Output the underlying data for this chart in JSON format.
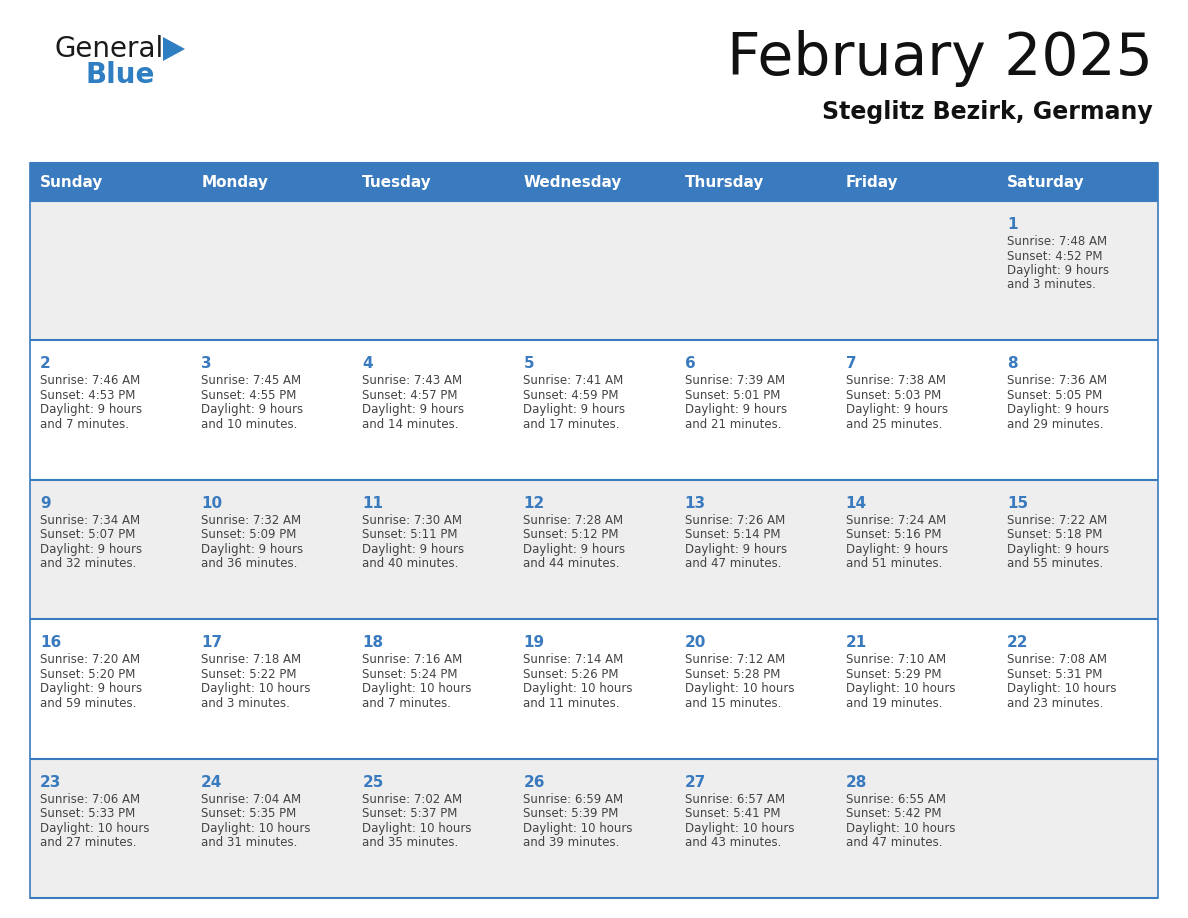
{
  "title": "February 2025",
  "subtitle": "Steglitz Bezirk, Germany",
  "days_of_week": [
    "Sunday",
    "Monday",
    "Tuesday",
    "Wednesday",
    "Thursday",
    "Friday",
    "Saturday"
  ],
  "header_bg": "#3a7abf",
  "header_text": "#ffffff",
  "row_bg": [
    "#eeeeee",
    "#ffffff",
    "#eeeeee",
    "#ffffff",
    "#eeeeee"
  ],
  "separator_color": "#3a7abf",
  "day_number_color": "#3a7abf",
  "text_color": "#444444",
  "calendar_data": [
    [
      null,
      null,
      null,
      null,
      null,
      null,
      {
        "day": 1,
        "sunrise": "7:48 AM",
        "sunset": "4:52 PM",
        "daylight_h": "9 hours",
        "daylight_m": "3 minutes"
      }
    ],
    [
      {
        "day": 2,
        "sunrise": "7:46 AM",
        "sunset": "4:53 PM",
        "daylight_h": "9 hours",
        "daylight_m": "7 minutes"
      },
      {
        "day": 3,
        "sunrise": "7:45 AM",
        "sunset": "4:55 PM",
        "daylight_h": "9 hours",
        "daylight_m": "10 minutes"
      },
      {
        "day": 4,
        "sunrise": "7:43 AM",
        "sunset": "4:57 PM",
        "daylight_h": "9 hours",
        "daylight_m": "14 minutes"
      },
      {
        "day": 5,
        "sunrise": "7:41 AM",
        "sunset": "4:59 PM",
        "daylight_h": "9 hours",
        "daylight_m": "17 minutes"
      },
      {
        "day": 6,
        "sunrise": "7:39 AM",
        "sunset": "5:01 PM",
        "daylight_h": "9 hours",
        "daylight_m": "21 minutes"
      },
      {
        "day": 7,
        "sunrise": "7:38 AM",
        "sunset": "5:03 PM",
        "daylight_h": "9 hours",
        "daylight_m": "25 minutes"
      },
      {
        "day": 8,
        "sunrise": "7:36 AM",
        "sunset": "5:05 PM",
        "daylight_h": "9 hours",
        "daylight_m": "29 minutes"
      }
    ],
    [
      {
        "day": 9,
        "sunrise": "7:34 AM",
        "sunset": "5:07 PM",
        "daylight_h": "9 hours",
        "daylight_m": "32 minutes"
      },
      {
        "day": 10,
        "sunrise": "7:32 AM",
        "sunset": "5:09 PM",
        "daylight_h": "9 hours",
        "daylight_m": "36 minutes"
      },
      {
        "day": 11,
        "sunrise": "7:30 AM",
        "sunset": "5:11 PM",
        "daylight_h": "9 hours",
        "daylight_m": "40 minutes"
      },
      {
        "day": 12,
        "sunrise": "7:28 AM",
        "sunset": "5:12 PM",
        "daylight_h": "9 hours",
        "daylight_m": "44 minutes"
      },
      {
        "day": 13,
        "sunrise": "7:26 AM",
        "sunset": "5:14 PM",
        "daylight_h": "9 hours",
        "daylight_m": "47 minutes"
      },
      {
        "day": 14,
        "sunrise": "7:24 AM",
        "sunset": "5:16 PM",
        "daylight_h": "9 hours",
        "daylight_m": "51 minutes"
      },
      {
        "day": 15,
        "sunrise": "7:22 AM",
        "sunset": "5:18 PM",
        "daylight_h": "9 hours",
        "daylight_m": "55 minutes"
      }
    ],
    [
      {
        "day": 16,
        "sunrise": "7:20 AM",
        "sunset": "5:20 PM",
        "daylight_h": "9 hours",
        "daylight_m": "59 minutes"
      },
      {
        "day": 17,
        "sunrise": "7:18 AM",
        "sunset": "5:22 PM",
        "daylight_h": "10 hours",
        "daylight_m": "3 minutes"
      },
      {
        "day": 18,
        "sunrise": "7:16 AM",
        "sunset": "5:24 PM",
        "daylight_h": "10 hours",
        "daylight_m": "7 minutes"
      },
      {
        "day": 19,
        "sunrise": "7:14 AM",
        "sunset": "5:26 PM",
        "daylight_h": "10 hours",
        "daylight_m": "11 minutes"
      },
      {
        "day": 20,
        "sunrise": "7:12 AM",
        "sunset": "5:28 PM",
        "daylight_h": "10 hours",
        "daylight_m": "15 minutes"
      },
      {
        "day": 21,
        "sunrise": "7:10 AM",
        "sunset": "5:29 PM",
        "daylight_h": "10 hours",
        "daylight_m": "19 minutes"
      },
      {
        "day": 22,
        "sunrise": "7:08 AM",
        "sunset": "5:31 PM",
        "daylight_h": "10 hours",
        "daylight_m": "23 minutes"
      }
    ],
    [
      {
        "day": 23,
        "sunrise": "7:06 AM",
        "sunset": "5:33 PM",
        "daylight_h": "10 hours",
        "daylight_m": "27 minutes"
      },
      {
        "day": 24,
        "sunrise": "7:04 AM",
        "sunset": "5:35 PM",
        "daylight_h": "10 hours",
        "daylight_m": "31 minutes"
      },
      {
        "day": 25,
        "sunrise": "7:02 AM",
        "sunset": "5:37 PM",
        "daylight_h": "10 hours",
        "daylight_m": "35 minutes"
      },
      {
        "day": 26,
        "sunrise": "6:59 AM",
        "sunset": "5:39 PM",
        "daylight_h": "10 hours",
        "daylight_m": "39 minutes"
      },
      {
        "day": 27,
        "sunrise": "6:57 AM",
        "sunset": "5:41 PM",
        "daylight_h": "10 hours",
        "daylight_m": "43 minutes"
      },
      {
        "day": 28,
        "sunrise": "6:55 AM",
        "sunset": "5:42 PM",
        "daylight_h": "10 hours",
        "daylight_m": "47 minutes"
      },
      null
    ]
  ],
  "logo_general_color": "#1a1a1a",
  "logo_blue_color": "#2e7ec1",
  "logo_triangle_color": "#2e7ec1"
}
